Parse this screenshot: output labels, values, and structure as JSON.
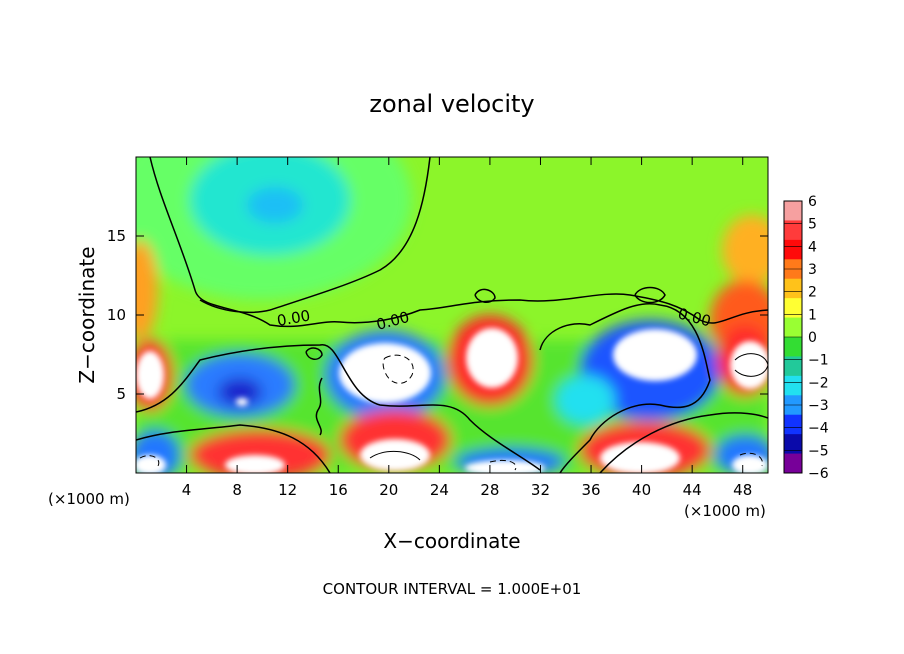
{
  "chart_data": {
    "type": "heatmap",
    "title": "zonal velocity",
    "xlabel": "X−coordinate",
    "ylabel": "Z−coordinate",
    "x_unit_left": "(×1000 m)",
    "x_unit_right": "(×1000 m)",
    "xlim": [
      0,
      50
    ],
    "ylim": [
      0,
      20
    ],
    "x_ticks": [
      4,
      8,
      12,
      16,
      20,
      24,
      28,
      32,
      36,
      40,
      44,
      48
    ],
    "y_ticks": [
      5,
      10,
      15
    ],
    "colorbar": {
      "levels": [
        6,
        5,
        4,
        3,
        2,
        1,
        0,
        -1,
        -2,
        -3,
        -4,
        -5,
        -6
      ],
      "labels": [
        "6",
        "5",
        "4",
        "3",
        "2",
        "1",
        "0",
        "−1",
        "−2",
        "−3",
        "−4",
        "−5",
        "−6"
      ],
      "colors": [
        "#f6a0a0",
        "#ff3b3b",
        "#ff0a0a",
        "#ff7a1a",
        "#ffc21a",
        "#ffff33",
        "#99ff33",
        "#33dd33",
        "#22c99a",
        "#22e0f0",
        "#2299ff",
        "#1133ff",
        "#0a0aaa",
        "#770099"
      ]
    },
    "contour_labels": [
      "0.00",
      "0.00",
      "0.00"
    ],
    "footer": "CONTOUR INTERVAL = 1.000E+01",
    "grid": false,
    "legend": "right"
  }
}
